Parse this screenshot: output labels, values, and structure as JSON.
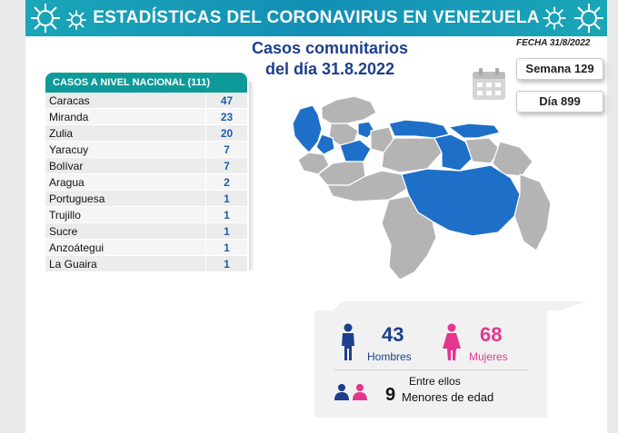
{
  "header": {
    "title": "ESTADÍSTICAS DEL CORONAVIRUS EN VENEZUELA"
  },
  "subtitle": {
    "line1": "Casos comunitarios",
    "line2": "del día 31.8.2022"
  },
  "fecha": "FECHA 31/8/2022",
  "semana": "Semana 129",
  "dia": "Día 899",
  "table": {
    "header": "CASOS A NIVEL NACIONAL  (111)",
    "rows": [
      {
        "name": "Caracas",
        "value": "47"
      },
      {
        "name": "Miranda",
        "value": "23"
      },
      {
        "name": "Zulia",
        "value": "20"
      },
      {
        "name": "Yaracuy",
        "value": "7"
      },
      {
        "name": "Bolívar",
        "value": "7"
      },
      {
        "name": "Aragua",
        "value": "2"
      },
      {
        "name": "Portuguesa",
        "value": "1"
      },
      {
        "name": "Trujillo",
        "value": "1"
      },
      {
        "name": "Sucre",
        "value": "1"
      },
      {
        "name": "Anzoátegui",
        "value": "1"
      },
      {
        "name": "La Guaira",
        "value": "1"
      }
    ]
  },
  "stats": {
    "hombres_count": "43",
    "hombres_label": "Hombres",
    "mujeres_count": "68",
    "mujeres_label": "Mujeres",
    "entre_ellos": "Entre ellos",
    "menores_count": "9",
    "menores_label": "Menores de edad"
  },
  "colors": {
    "banner": "#138fb6",
    "table_header": "#0f9a9a",
    "highlight_state": "#1e6fc8",
    "other_state": "#b4b4b4",
    "male": "#1c3f8c",
    "female": "#e4368f",
    "values": "#1c5fa8"
  },
  "icons": [
    "virus-icon",
    "calendar-icon",
    "male-icon",
    "female-icon",
    "children-icon"
  ]
}
